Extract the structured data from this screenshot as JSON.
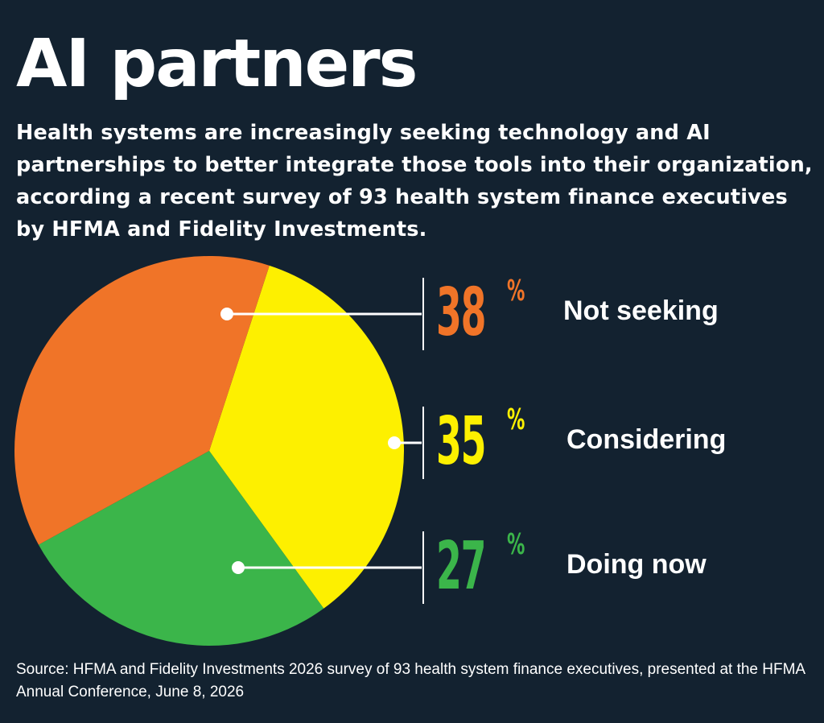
{
  "title": "AI partners",
  "subtitle": "Health systems are increasingly seeking technology and AI partnerships to better integrate those tools into their organization, according a recent survey of 93 health system finance executives by HFMA and Fidelity Investments.",
  "source": "Source: HFMA and Fidelity Investments 2026 survey of 93 health system finance executives, presented at the HFMA Annual Conference, June 8, 2026",
  "colors": {
    "background": "#132230",
    "not_seeking": "#f07428",
    "considering": "#fdf000",
    "doing_now": "#3bb54a",
    "text": "#ffffff"
  },
  "chart_data": {
    "type": "pie",
    "title": "",
    "categories": [
      "Not seeking",
      "Considering",
      "Doing now"
    ],
    "values": [
      38,
      35,
      27
    ],
    "value_labels": [
      "38",
      "35",
      "27"
    ],
    "unit": "%",
    "colors": [
      "#f07428",
      "#fdf000",
      "#3bb54a"
    ],
    "legend": "right"
  }
}
